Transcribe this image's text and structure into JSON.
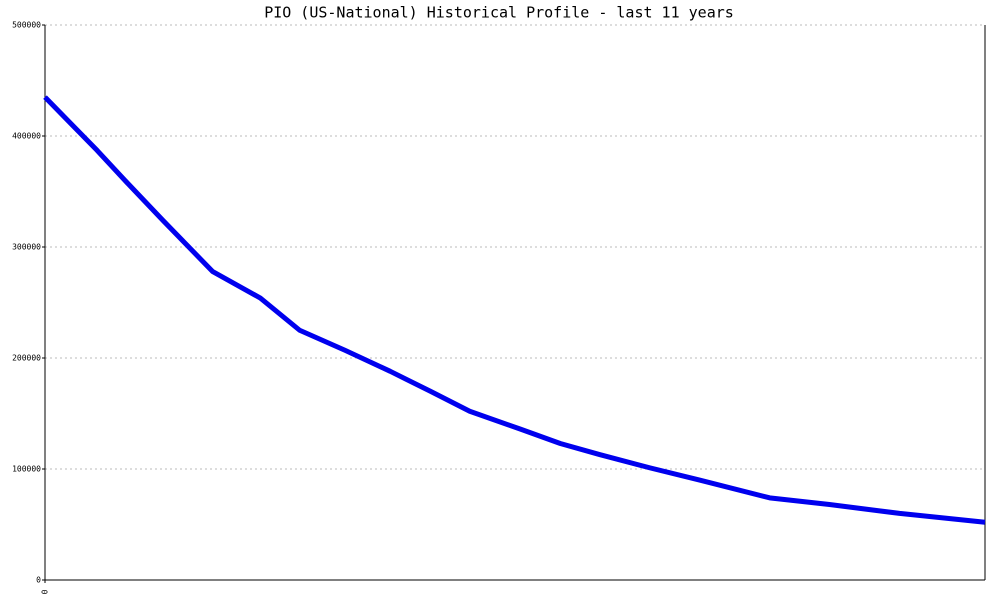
{
  "chart_data": {
    "type": "line",
    "title": "PIO (US-National) Historical Profile - last 11 years",
    "x": [
      0,
      0.61,
      0.96,
      1.38,
      1.96,
      2.52,
      2.98,
      3.51,
      4.04,
      4.51,
      4.97,
      5.56,
      6.03,
      6.49,
      7.08,
      7.66,
      8.48,
      9.18,
      10.0,
      11
    ],
    "series": [
      {
        "name": "PIO",
        "color": "#0000ee",
        "values": [
          435000,
          387000,
          358000,
          324000,
          278000,
          254000,
          225000,
          207000,
          188000,
          170000,
          152000,
          136000,
          123000,
          113000,
          101000,
          90000,
          74000,
          68000,
          60000,
          52000
        ]
      }
    ],
    "xlim": [
      0,
      11
    ],
    "xticks": [
      0
    ],
    "ylim": [
      0,
      500000
    ],
    "yticks": [
      0,
      100000,
      200000,
      300000,
      400000,
      500000
    ],
    "grid": true
  }
}
